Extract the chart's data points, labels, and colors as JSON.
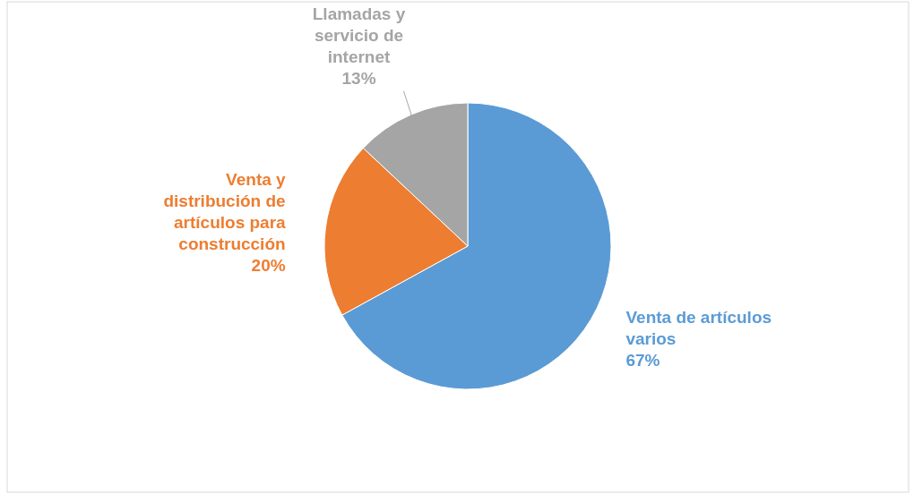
{
  "chart_data": {
    "type": "pie",
    "categories": [
      "Venta de artículos varios",
      "Venta y distribución de artículos para construcción",
      "Llamadas y servicio de internet"
    ],
    "values": [
      67,
      20,
      13
    ],
    "colors": [
      "#5b9bd5",
      "#ed7d31",
      "#a5a5a5"
    ],
    "value_labels": [
      "67%",
      "20%",
      "13%"
    ]
  }
}
